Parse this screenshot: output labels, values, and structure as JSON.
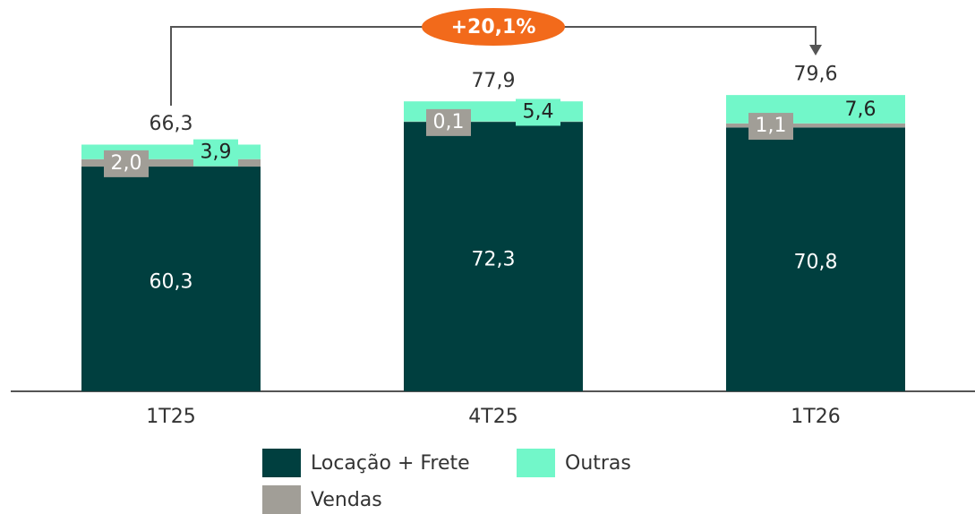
{
  "chart_data": {
    "type": "stacked_bar",
    "categories": [
      "1T25",
      "4T25",
      "1T26"
    ],
    "series": [
      {
        "name": "Locação + Frete",
        "color": "#003f3f",
        "values": [
          60.3,
          72.3,
          70.8
        ],
        "value_labels": [
          "60,3",
          "72,3",
          "70,8"
        ]
      },
      {
        "name": "Vendas",
        "color": "#a19e97",
        "values": [
          2.0,
          0.1,
          1.1
        ],
        "value_labels": [
          "2,0",
          "0,1",
          "1,1"
        ]
      },
      {
        "name": "Outras",
        "color": "#72f7c9",
        "values": [
          3.9,
          5.4,
          7.6
        ],
        "value_labels": [
          "3,9",
          "5,4",
          "7,6"
        ]
      }
    ],
    "totals": {
      "values": [
        66.3,
        77.9,
        79.6
      ],
      "value_labels": [
        "66,3",
        "77,9",
        "79,6"
      ]
    },
    "annotation": "+20,1%",
    "ylim": [
      0,
      105
    ]
  }
}
